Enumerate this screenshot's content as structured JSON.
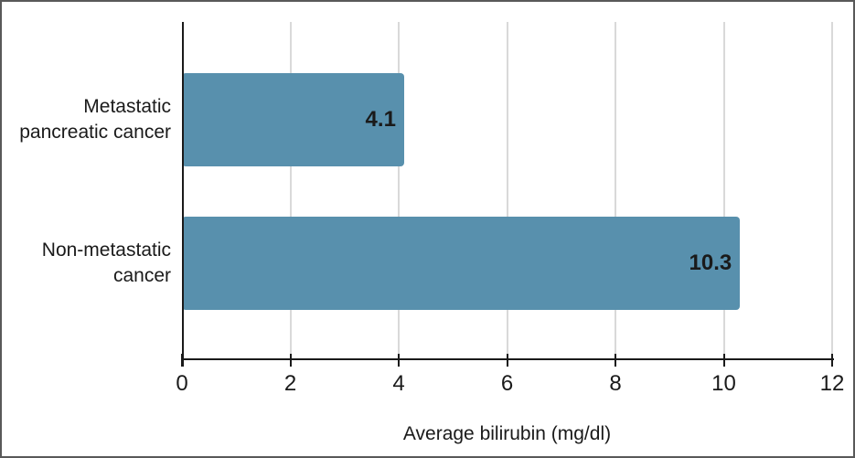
{
  "chart_data": {
    "type": "bar",
    "orientation": "horizontal",
    "title": "",
    "xlabel": "Average bilirubin (mg/dl)",
    "ylabel": "",
    "categories": [
      "Metastatic\npancreatic cancer",
      "Non-metastatic\ncancer"
    ],
    "values": [
      4.1,
      10.3
    ],
    "value_labels": [
      "4.1",
      "10.3"
    ],
    "xlim": [
      0,
      12
    ],
    "xticks": [
      0,
      2,
      4,
      6,
      8,
      10,
      12
    ],
    "grid": true,
    "legend": false,
    "colors": {
      "bar_fill": "#5890ad",
      "gridline": "#d9d9d9",
      "axis": "#1a1a1a",
      "text": "#1a1a1a",
      "frame_border": "#595959",
      "background": "#ffffff"
    }
  }
}
